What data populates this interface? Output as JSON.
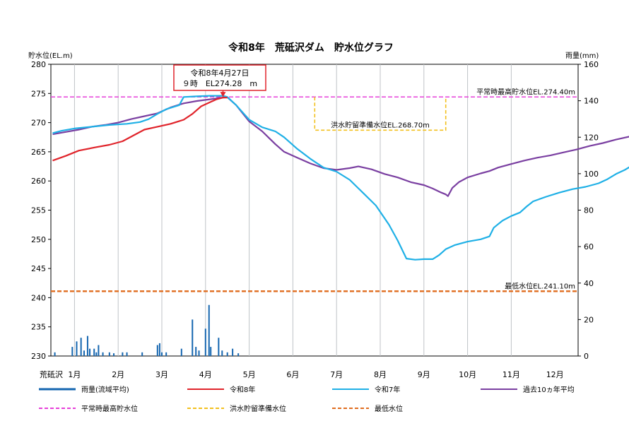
{
  "chart_data": {
    "type": "line",
    "title": "令和8年　荒砥沢ダム　貯水位グラフ",
    "ylabel": "貯水位(EL.m)",
    "y2label": "雨量(mm)",
    "xlabel": "荒砥沢",
    "ylim": [
      230,
      280
    ],
    "y_ticks": [
      230,
      235,
      240,
      245,
      250,
      255,
      260,
      265,
      270,
      275,
      280
    ],
    "y2lim": [
      0,
      160
    ],
    "y2_ticks": [
      0,
      20,
      40,
      60,
      80,
      100,
      120,
      140,
      160
    ],
    "months": [
      "1月",
      "2月",
      "3月",
      "4月",
      "5月",
      "6月",
      "7月",
      "8月",
      "9月",
      "10月",
      "11月",
      "12月"
    ],
    "grid": "vertical",
    "legend_position": "bottom",
    "annotation": {
      "lines": [
        "令和8年4月27日",
        "９時　EL274.28　m"
      ],
      "month": 4.9,
      "value": 274.28,
      "color": "#e0242b"
    },
    "reference_lines": [
      {
        "name": "平常時最高貯水位",
        "label": "平常時最高貯水位EL.274.40m",
        "value": 274.4,
        "color": "#e640d9"
      },
      {
        "name": "洪水貯留準備水位",
        "label": "洪水貯留準備水位EL.268.70m",
        "value": 268.7,
        "color": "#f2c01e",
        "from_month": 7.0,
        "to_month": 10.0
      },
      {
        "name": "最低水位",
        "label": "最低水位EL.241.10m",
        "value": 241.1,
        "color": "#e06d1f"
      }
    ],
    "series": [
      {
        "name": "令和8年",
        "color": "#e0242b",
        "points": [
          [
            1.0,
            263.5
          ],
          [
            1.3,
            264.3
          ],
          [
            1.6,
            265.2
          ],
          [
            2.0,
            265.8
          ],
          [
            2.3,
            266.2
          ],
          [
            2.6,
            266.8
          ],
          [
            2.9,
            268.0
          ],
          [
            3.1,
            268.8
          ],
          [
            3.4,
            269.3
          ],
          [
            3.7,
            269.8
          ],
          [
            4.0,
            270.5
          ],
          [
            4.2,
            271.5
          ],
          [
            4.4,
            272.8
          ],
          [
            4.6,
            273.5
          ],
          [
            4.75,
            274.0
          ],
          [
            4.9,
            274.28
          ],
          [
            5.0,
            274.3
          ]
        ]
      },
      {
        "name": "令和7年",
        "color": "#1fb0e6",
        "points": [
          [
            1.0,
            268.2
          ],
          [
            1.2,
            268.6
          ],
          [
            1.5,
            269.0
          ],
          [
            1.9,
            269.3
          ],
          [
            2.3,
            269.6
          ],
          [
            2.7,
            269.8
          ],
          [
            3.0,
            270.1
          ],
          [
            3.2,
            270.6
          ],
          [
            3.4,
            271.5
          ],
          [
            3.6,
            272.3
          ],
          [
            3.9,
            273.0
          ],
          [
            4.0,
            274.4
          ],
          [
            4.3,
            274.5
          ],
          [
            4.6,
            274.6
          ],
          [
            4.9,
            274.6
          ],
          [
            5.0,
            274.4
          ],
          [
            5.2,
            273.0
          ],
          [
            5.5,
            270.5
          ],
          [
            5.8,
            269.2
          ],
          [
            6.1,
            268.5
          ],
          [
            6.3,
            267.5
          ],
          [
            6.6,
            265.5
          ],
          [
            6.9,
            263.8
          ],
          [
            7.2,
            262.3
          ],
          [
            7.5,
            261.6
          ],
          [
            7.8,
            260.2
          ],
          [
            8.1,
            258.0
          ],
          [
            8.4,
            255.8
          ],
          [
            8.7,
            252.5
          ],
          [
            8.9,
            249.8
          ],
          [
            9.1,
            246.7
          ],
          [
            9.3,
            246.5
          ],
          [
            9.5,
            246.6
          ],
          [
            9.7,
            246.6
          ],
          [
            9.85,
            247.3
          ],
          [
            10.0,
            248.3
          ],
          [
            10.2,
            249.0
          ],
          [
            10.5,
            249.6
          ],
          [
            10.8,
            250.0
          ],
          [
            11.0,
            250.5
          ],
          [
            11.1,
            252.0
          ],
          [
            11.3,
            253.2
          ],
          [
            11.5,
            254.0
          ],
          [
            11.7,
            254.6
          ],
          [
            11.85,
            255.6
          ],
          [
            12.0,
            256.5
          ],
          [
            12.3,
            257.3
          ],
          [
            12.6,
            258.0
          ],
          [
            12.9,
            258.6
          ],
          [
            13.2,
            259.0
          ],
          [
            13.5,
            259.6
          ],
          [
            13.7,
            260.3
          ],
          [
            13.9,
            261.2
          ],
          [
            14.1,
            261.9
          ],
          [
            14.3,
            262.8
          ],
          [
            14.45,
            263.5
          ]
        ]
      },
      {
        "name": "過去10ヵ年平均",
        "color": "#7a3fa1",
        "points": [
          [
            1.0,
            268.0
          ],
          [
            1.3,
            268.4
          ],
          [
            1.6,
            268.8
          ],
          [
            1.9,
            269.3
          ],
          [
            2.2,
            269.6
          ],
          [
            2.5,
            270.0
          ],
          [
            2.8,
            270.6
          ],
          [
            3.1,
            271.1
          ],
          [
            3.4,
            271.6
          ],
          [
            3.7,
            272.6
          ],
          [
            4.0,
            273.3
          ],
          [
            4.3,
            273.7
          ],
          [
            4.6,
            274.0
          ],
          [
            4.9,
            274.3
          ],
          [
            5.0,
            274.35
          ],
          [
            5.2,
            273.0
          ],
          [
            5.5,
            270.2
          ],
          [
            5.8,
            268.5
          ],
          [
            6.1,
            266.3
          ],
          [
            6.3,
            265.0
          ],
          [
            6.6,
            264.0
          ],
          [
            6.9,
            263.0
          ],
          [
            7.2,
            262.2
          ],
          [
            7.5,
            261.9
          ],
          [
            7.8,
            262.2
          ],
          [
            8.0,
            262.5
          ],
          [
            8.3,
            262.0
          ],
          [
            8.6,
            261.2
          ],
          [
            8.9,
            260.6
          ],
          [
            9.2,
            259.8
          ],
          [
            9.5,
            259.3
          ],
          [
            9.7,
            258.7
          ],
          [
            9.9,
            258.0
          ],
          [
            10.0,
            257.7
          ],
          [
            10.05,
            257.4
          ],
          [
            10.15,
            258.8
          ],
          [
            10.3,
            259.8
          ],
          [
            10.5,
            260.6
          ],
          [
            10.8,
            261.3
          ],
          [
            11.0,
            261.7
          ],
          [
            11.2,
            262.3
          ],
          [
            11.5,
            262.9
          ],
          [
            11.8,
            263.5
          ],
          [
            12.1,
            264.0
          ],
          [
            12.4,
            264.4
          ],
          [
            12.7,
            264.9
          ],
          [
            13.0,
            265.4
          ],
          [
            13.3,
            266.0
          ],
          [
            13.6,
            266.5
          ],
          [
            13.9,
            267.1
          ],
          [
            14.2,
            267.6
          ],
          [
            14.45,
            267.9
          ]
        ]
      }
    ],
    "rainfall": {
      "name": "雨量(流域平均)",
      "color": "#1566b0",
      "points": [
        [
          1.05,
          2
        ],
        [
          1.45,
          5
        ],
        [
          1.55,
          8
        ],
        [
          1.65,
          10
        ],
        [
          1.72,
          3
        ],
        [
          1.8,
          11
        ],
        [
          1.85,
          4
        ],
        [
          1.95,
          4
        ],
        [
          2.0,
          2
        ],
        [
          2.05,
          6
        ],
        [
          2.15,
          2
        ],
        [
          2.3,
          2
        ],
        [
          2.4,
          1.5
        ],
        [
          2.6,
          2
        ],
        [
          2.7,
          2
        ],
        [
          3.05,
          2
        ],
        [
          3.4,
          6
        ],
        [
          3.45,
          7
        ],
        [
          3.5,
          2
        ],
        [
          3.6,
          2
        ],
        [
          3.95,
          4
        ],
        [
          4.2,
          20
        ],
        [
          4.28,
          5
        ],
        [
          4.35,
          3
        ],
        [
          4.5,
          15
        ],
        [
          4.58,
          28
        ],
        [
          4.62,
          5
        ],
        [
          4.8,
          10
        ],
        [
          4.88,
          3
        ],
        [
          5.0,
          2
        ],
        [
          5.12,
          4
        ],
        [
          5.25,
          1.5
        ]
      ]
    },
    "legend": [
      {
        "label": "雨量(流域平均)",
        "style": "solid-thick",
        "color": "#1566b0"
      },
      {
        "label": "令和8年",
        "style": "solid",
        "color": "#e0242b"
      },
      {
        "label": "令和7年",
        "style": "solid",
        "color": "#1fb0e6"
      },
      {
        "label": "過去10ヵ年平均",
        "style": "solid",
        "color": "#7a3fa1"
      },
      {
        "label": "平常時最高貯水位",
        "style": "dashed",
        "color": "#e640d9"
      },
      {
        "label": "洪水貯留準備水位",
        "style": "dashed",
        "color": "#f2c01e"
      },
      {
        "label": "最低水位",
        "style": "dashed",
        "color": "#e06d1f"
      }
    ]
  }
}
